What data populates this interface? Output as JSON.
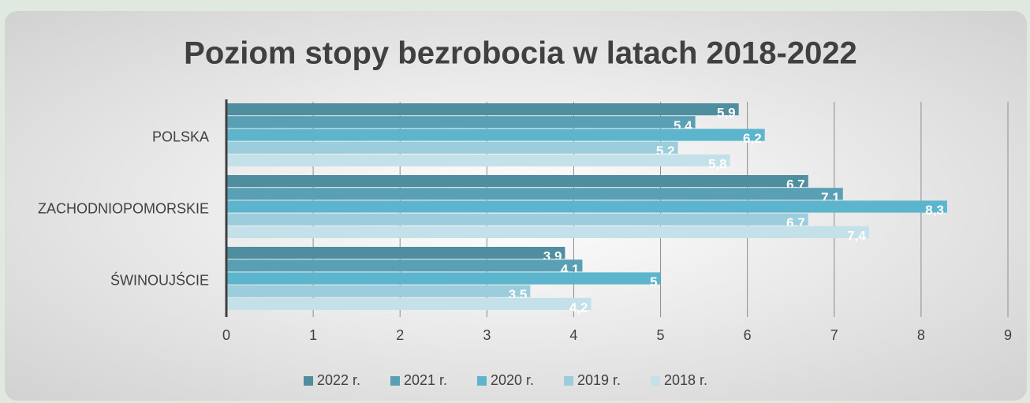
{
  "chart_data": {
    "type": "hbar",
    "title": "Poziom stopy bezrobocia w latach 2018-2022",
    "categories": [
      "POLSKA",
      "ZACHODNIOPOMORSKIE",
      "ŚWINOUJŚCIE"
    ],
    "series": [
      {
        "name": "2022 r.",
        "color": "#4e8e9f",
        "values": [
          5.9,
          6.7,
          3.9
        ],
        "value_labels": [
          "5,9",
          "6,7",
          "3,9"
        ]
      },
      {
        "name": "2021 r.",
        "color": "#5aa0b4",
        "values": [
          5.4,
          7.1,
          4.1
        ],
        "value_labels": [
          "5,4",
          "7,1",
          "4,1"
        ]
      },
      {
        "name": "2020 r.",
        "color": "#5cb5cd",
        "values": [
          6.2,
          8.3,
          5
        ],
        "value_labels": [
          "6,2",
          "8,3",
          "5"
        ]
      },
      {
        "name": "2019 r.",
        "color": "#9bcddc",
        "values": [
          5.2,
          6.7,
          3.5
        ],
        "value_labels": [
          "5,2",
          "6,7",
          "3,5"
        ]
      },
      {
        "name": "2018 r.",
        "color": "#c4e0e9",
        "values": [
          5.8,
          7.4,
          4.2
        ],
        "value_labels": [
          "5,8",
          "7,4",
          "4,2"
        ]
      }
    ],
    "xlim": [
      0,
      9
    ],
    "xticks": [
      0,
      1,
      2,
      3,
      4,
      5,
      6,
      7,
      8,
      9
    ],
    "grid": true,
    "legend": "bottom"
  }
}
